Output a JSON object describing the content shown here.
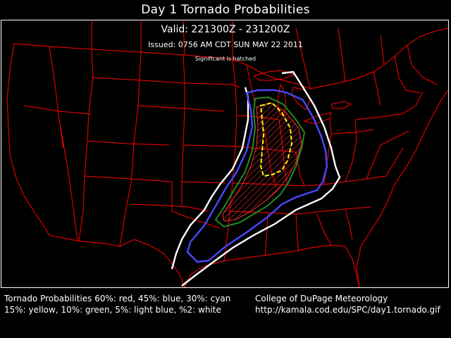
{
  "header": {
    "title": "Day 1 Tornado Probabilities",
    "valid": "Valid: 221300Z - 231200Z",
    "issued": "Issued: 0756 AM CDT SUN MAY 22 2011",
    "note": "Significant is hatched"
  },
  "legend": {
    "line1": "Tornado Probabilities 60%: red, 45%: blue, 30%: cyan",
    "line2": "15%: yellow, 10%: green, 5%: light blue, %2: white"
  },
  "credit": {
    "org": "College of DuPage Meteorology",
    "url": "http://kamala.cod.edu/SPC/day1.tornado.gif"
  },
  "colors": {
    "background": "#000000",
    "boundaries": "#ff0000",
    "prob_2": "#ffffff",
    "prob_5": "#4848ff",
    "prob_10": "#228b22",
    "prob_15": "#ffff00",
    "significant_hatch": "#ff3030",
    "text": "#ffffff"
  }
}
